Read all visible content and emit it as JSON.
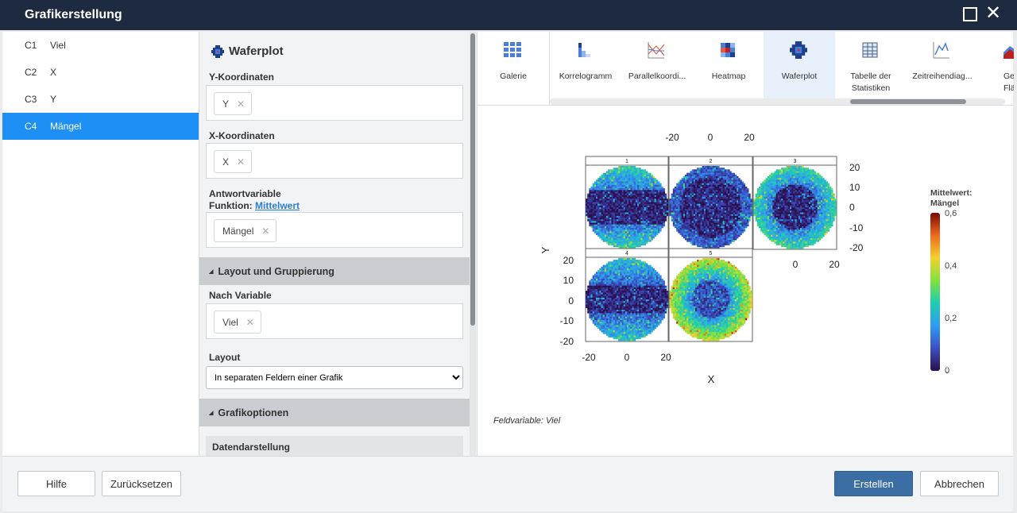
{
  "window": {
    "title": "Grafikerstellung",
    "maximize_icon": "maximize-icon",
    "close_icon": "close-icon"
  },
  "variables": [
    {
      "col": "C1",
      "name": "Viel",
      "selected": false
    },
    {
      "col": "C2",
      "name": "X",
      "selected": false
    },
    {
      "col": "C3",
      "name": "Y",
      "selected": false
    },
    {
      "col": "C4",
      "name": "Mängel",
      "selected": true
    }
  ],
  "panel": {
    "title": "Waferplot",
    "y_coords": {
      "label": "Y-Koordinaten",
      "value": "Y"
    },
    "x_coords": {
      "label": "X-Koordinaten",
      "value": "X"
    },
    "response": {
      "label": "Antwortvariable",
      "function_label": "Funktion:",
      "function_value": "Mittelwert",
      "value": "Mängel"
    },
    "layout_section": "Layout und Gruppierung",
    "by_variable": {
      "label": "Nach Variable",
      "value": "Viel"
    },
    "layout": {
      "label": "Layout",
      "selected": "In separaten Feldern einer Grafik"
    },
    "graph_options_section": "Grafikoptionen",
    "data_display": "Datendarstellung"
  },
  "gallery": {
    "items": [
      {
        "label": "Galerie",
        "icon": "grid-icon"
      },
      {
        "label": "Korrelogramm",
        "icon": "correlogram-icon"
      },
      {
        "label": "Parallelkoordi...",
        "icon": "parallel-coordinates-icon"
      },
      {
        "label": "Heatmap",
        "icon": "heatmap-icon"
      },
      {
        "label": "Waferplot",
        "icon": "waferplot-icon",
        "selected": true
      },
      {
        "label": "Tabelle der Statistiken",
        "icon": "table-icon"
      },
      {
        "label": "Zeitreihendiag...",
        "icon": "time-series-icon"
      },
      {
        "label": "Gestap Flächend",
        "icon": "stacked-area-icon"
      }
    ]
  },
  "chart_data": {
    "type": "heatmap",
    "subtype": "wafer plot",
    "xlabel": "X",
    "ylabel": "Y",
    "xlim": [
      -22,
      22
    ],
    "ylim": [
      -22,
      22
    ],
    "x_ticks": [
      "-20",
      "0",
      "20"
    ],
    "y_ticks": [
      "20",
      "10",
      "0",
      "-10",
      "-20"
    ],
    "panels": [
      "1",
      "2",
      "3",
      "4",
      "5"
    ],
    "legend": {
      "title_line1": "Mittelwert:",
      "title_line2": "Mängel",
      "ticks": [
        "0,6",
        "0,4",
        "0,2",
        "0"
      ],
      "range": [
        0,
        0.6
      ],
      "placement": "right"
    },
    "colormap": [
      "#2b0f4c",
      "#3b4fc4",
      "#2f9cf2",
      "#1fcdb0",
      "#80e23c",
      "#f2d22e",
      "#f06a1c",
      "#7a0a06"
    ],
    "footnote": "Feldvariable: Viel"
  },
  "footer": {
    "help": "Hilfe",
    "reset": "Zurücksetzen",
    "create": "Erstellen",
    "cancel": "Abbrechen"
  }
}
